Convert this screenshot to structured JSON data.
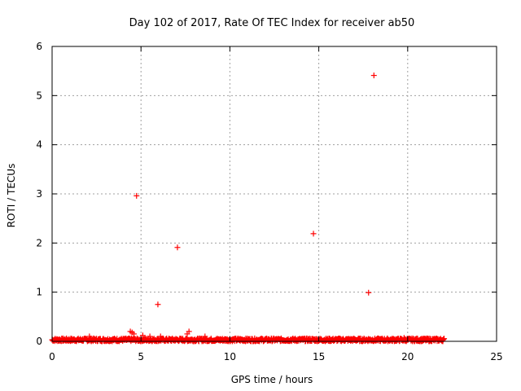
{
  "chart_data": {
    "type": "scatter",
    "title": "Day 102 of 2017, Rate Of TEC Index for receiver ab50",
    "xlabel": "GPS time / hours",
    "ylabel": "ROTI / TECUs",
    "xlim": [
      0,
      25
    ],
    "ylim": [
      0,
      6
    ],
    "xticks": [
      "0",
      "5",
      "10",
      "15",
      "20",
      "25"
    ],
    "yticks": [
      "0",
      "1",
      "2",
      "3",
      "4",
      "5",
      "6"
    ],
    "grid": true,
    "marker": "+",
    "color": "#ff0000",
    "series": [
      {
        "outliers": [
          {
            "x": 4.75,
            "y": 2.96
          },
          {
            "x": 5.95,
            "y": 0.75
          },
          {
            "x": 7.05,
            "y": 1.91
          },
          {
            "x": 14.7,
            "y": 2.19
          },
          {
            "x": 17.8,
            "y": 0.99
          },
          {
            "x": 18.1,
            "y": 5.41
          }
        ],
        "baseline": {
          "x_range": [
            0,
            22.05
          ],
          "y_range": [
            0.0,
            0.06
          ],
          "description_points": [
            {
              "x": 2.1,
              "y": 0.1
            },
            {
              "x": 4.4,
              "y": 0.2
            },
            {
              "x": 4.5,
              "y": 0.18
            },
            {
              "x": 4.6,
              "y": 0.15
            },
            {
              "x": 5.1,
              "y": 0.12
            },
            {
              "x": 5.5,
              "y": 0.1
            },
            {
              "x": 6.1,
              "y": 0.1
            },
            {
              "x": 7.6,
              "y": 0.15
            },
            {
              "x": 7.7,
              "y": 0.2
            },
            {
              "x": 8.6,
              "y": 0.1
            },
            {
              "x": 17.8,
              "y": 0.05
            },
            {
              "x": 19.8,
              "y": 0.07
            }
          ]
        }
      }
    ]
  }
}
